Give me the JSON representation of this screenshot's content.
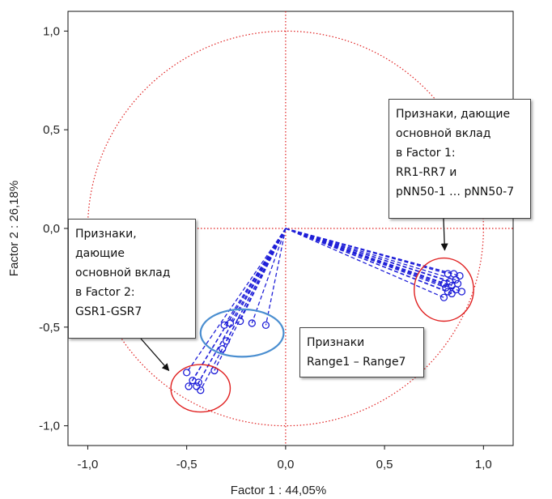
{
  "chart_data": {
    "type": "scatter",
    "xlabel": "Factor 1 : 44,05%",
    "ylabel": "Factor 2 : 26,18%",
    "xlim": [
      -1.1,
      1.15
    ],
    "ylim": [
      -1.1,
      1.1
    ],
    "x_ticks": [
      -1.0,
      -0.5,
      0.0,
      0.5,
      1.0
    ],
    "y_ticks": [
      1.0,
      0.5,
      0.0,
      -0.5,
      -1.0
    ],
    "x_tick_labels": [
      "-1,0",
      "-0,5",
      "0,0",
      "0,5",
      "1,0"
    ],
    "y_tick_labels": [
      "1,0",
      "0,5",
      "0,0",
      "-0,5",
      "-1,0"
    ],
    "unit_circle": true,
    "reference_lines": [
      0.0
    ],
    "groups": [
      {
        "id": "rr_pnn50",
        "points": [
          {
            "x": 0.82,
            "y": -0.23
          },
          {
            "x": 0.85,
            "y": -0.23
          },
          {
            "x": 0.88,
            "y": -0.24
          },
          {
            "x": 0.86,
            "y": -0.26
          },
          {
            "x": 0.83,
            "y": -0.27
          },
          {
            "x": 0.8,
            "y": -0.28
          },
          {
            "x": 0.87,
            "y": -0.28
          },
          {
            "x": 0.84,
            "y": -0.29
          },
          {
            "x": 0.81,
            "y": -0.3
          },
          {
            "x": 0.86,
            "y": -0.31
          },
          {
            "x": 0.82,
            "y": -0.32
          },
          {
            "x": 0.89,
            "y": -0.32
          },
          {
            "x": 0.84,
            "y": -0.33
          },
          {
            "x": 0.8,
            "y": -0.35
          }
        ]
      },
      {
        "id": "range",
        "points": [
          {
            "x": -0.1,
            "y": -0.49
          },
          {
            "x": -0.17,
            "y": -0.48
          },
          {
            "x": -0.23,
            "y": -0.47
          },
          {
            "x": -0.28,
            "y": -0.48
          },
          {
            "x": -0.31,
            "y": -0.49
          },
          {
            "x": -0.3,
            "y": -0.57
          },
          {
            "x": -0.32,
            "y": -0.61
          }
        ]
      },
      {
        "id": "gsr",
        "points": [
          {
            "x": -0.5,
            "y": -0.73
          },
          {
            "x": -0.47,
            "y": -0.77
          },
          {
            "x": -0.45,
            "y": -0.8
          },
          {
            "x": -0.43,
            "y": -0.82
          },
          {
            "x": -0.49,
            "y": -0.8
          },
          {
            "x": -0.44,
            "y": -0.78
          },
          {
            "x": -0.36,
            "y": -0.72
          }
        ]
      }
    ],
    "highlight_ellipses": [
      {
        "group": "rr_pnn50",
        "cx": 0.8,
        "cy": -0.31,
        "rx": 0.15,
        "ry": 0.16,
        "color": "#e02020"
      },
      {
        "group": "range",
        "cx": -0.22,
        "cy": -0.53,
        "rx": 0.21,
        "ry": 0.12,
        "color": "#4a8ed0"
      },
      {
        "group": "gsr",
        "cx": -0.43,
        "cy": -0.81,
        "rx": 0.15,
        "ry": 0.12,
        "color": "#e02020"
      }
    ],
    "colors": {
      "vectors": "#1f1fd8",
      "reference": "#e02020"
    }
  },
  "annotations": {
    "factor1_note": {
      "lines": [
        "Признаки, дающие",
        "основной вклад",
        "в Factor 1:",
        "RR1-RR7 и",
        "pNN50-1 … pNN50-7"
      ],
      "arrow_to": {
        "x": 0.8,
        "y": -0.11
      }
    },
    "factor2_note": {
      "lines": [
        "Признаки,",
        "дающие",
        "основной вклад",
        "в Factor 2:",
        "GSR1-GSR7"
      ],
      "arrow_to": {
        "x": -0.59,
        "y": -0.72
      }
    },
    "range_note": {
      "lines": [
        "Признаки",
        "Range1 – Range7"
      ]
    }
  }
}
